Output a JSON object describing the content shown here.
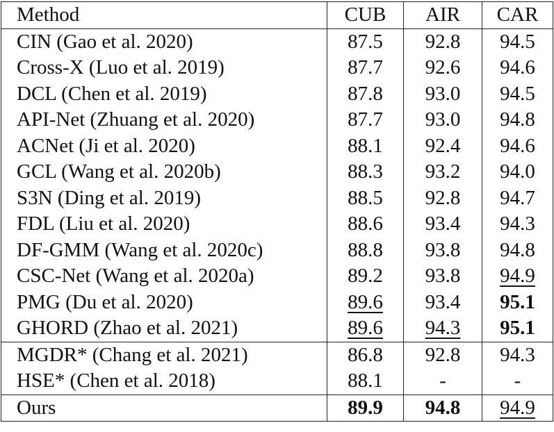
{
  "table": {
    "header": [
      "Method",
      "CUB",
      "AIR",
      "CAR"
    ],
    "groups": [
      [
        {
          "method": "CIN (Gao et al. 2020)",
          "cells": [
            {
              "text": "87.5"
            },
            {
              "text": "92.8"
            },
            {
              "text": "94.5"
            }
          ]
        },
        {
          "method": "Cross-X (Luo et al. 2019)",
          "cells": [
            {
              "text": "87.7"
            },
            {
              "text": "92.6"
            },
            {
              "text": "94.6"
            }
          ]
        },
        {
          "method": "DCL (Chen et al. 2019)",
          "cells": [
            {
              "text": "87.8"
            },
            {
              "text": "93.0"
            },
            {
              "text": "94.5"
            }
          ]
        },
        {
          "method": "API-Net (Zhuang et al. 2020)",
          "cells": [
            {
              "text": "87.7"
            },
            {
              "text": "93.0"
            },
            {
              "text": "94.8"
            }
          ]
        },
        {
          "method": "ACNet (Ji et al. 2020)",
          "cells": [
            {
              "text": "88.1"
            },
            {
              "text": "92.4"
            },
            {
              "text": "94.6"
            }
          ]
        },
        {
          "method": "GCL (Wang et al. 2020b)",
          "cells": [
            {
              "text": "88.3"
            },
            {
              "text": "93.2"
            },
            {
              "text": "94.0"
            }
          ]
        },
        {
          "method": "S3N (Ding et al. 2019)",
          "cells": [
            {
              "text": "88.5"
            },
            {
              "text": "92.8"
            },
            {
              "text": "94.7"
            }
          ]
        },
        {
          "method": "FDL (Liu et al. 2020)",
          "cells": [
            {
              "text": "88.6"
            },
            {
              "text": "93.4"
            },
            {
              "text": "94.3"
            }
          ]
        },
        {
          "method": "DF-GMM (Wang et al. 2020c)",
          "cells": [
            {
              "text": "88.8"
            },
            {
              "text": "93.8"
            },
            {
              "text": "94.8"
            }
          ]
        },
        {
          "method": "CSC-Net (Wang et al. 2020a)",
          "cells": [
            {
              "text": "89.2"
            },
            {
              "text": "93.8"
            },
            {
              "text": "94.9",
              "underline": true
            }
          ]
        },
        {
          "method": "PMG (Du et al. 2020)",
          "cells": [
            {
              "text": "89.6",
              "underline": true
            },
            {
              "text": "93.4"
            },
            {
              "text": "95.1",
              "bold": true
            }
          ]
        },
        {
          "method": "GHORD (Zhao et al. 2021)",
          "cells": [
            {
              "text": "89.6",
              "underline": true
            },
            {
              "text": "94.3",
              "underline": true
            },
            {
              "text": "95.1",
              "bold": true
            }
          ]
        }
      ],
      [
        {
          "method": "MGDR* (Chang et al. 2021)",
          "cells": [
            {
              "text": "86.8"
            },
            {
              "text": "92.8"
            },
            {
              "text": "94.3"
            }
          ]
        },
        {
          "method": "HSE* (Chen et al. 2018)",
          "cells": [
            {
              "text": "88.1"
            },
            {
              "text": "-"
            },
            {
              "text": "-"
            }
          ]
        }
      ],
      [
        {
          "method": "Ours",
          "cells": [
            {
              "text": "89.9",
              "bold": true
            },
            {
              "text": "94.8",
              "bold": true
            },
            {
              "text": "94.9",
              "underline": true
            }
          ]
        }
      ]
    ]
  }
}
